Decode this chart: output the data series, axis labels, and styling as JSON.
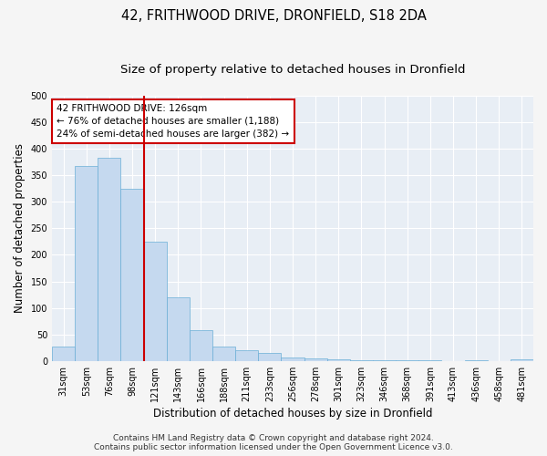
{
  "title": "42, FRITHWOOD DRIVE, DRONFIELD, S18 2DA",
  "subtitle": "Size of property relative to detached houses in Dronfield",
  "xlabel": "Distribution of detached houses by size in Dronfield",
  "ylabel": "Number of detached properties",
  "bins": [
    "31sqm",
    "53sqm",
    "76sqm",
    "98sqm",
    "121sqm",
    "143sqm",
    "166sqm",
    "188sqm",
    "211sqm",
    "233sqm",
    "256sqm",
    "278sqm",
    "301sqm",
    "323sqm",
    "346sqm",
    "368sqm",
    "391sqm",
    "413sqm",
    "436sqm",
    "458sqm",
    "481sqm"
  ],
  "values": [
    27,
    367,
    383,
    325,
    225,
    120,
    59,
    27,
    20,
    16,
    6,
    5,
    3,
    2,
    1,
    1,
    1,
    0,
    1,
    0,
    3
  ],
  "bar_color": "#c5d9ef",
  "bar_edge_color": "#6aaed6",
  "vline_color": "#cc0000",
  "annotation_text": "42 FRITHWOOD DRIVE: 126sqm\n← 76% of detached houses are smaller (1,188)\n24% of semi-detached houses are larger (382) →",
  "annotation_box_color": "#ffffff",
  "annotation_box_edge": "#cc0000",
  "ylim": [
    0,
    500
  ],
  "yticks": [
    0,
    50,
    100,
    150,
    200,
    250,
    300,
    350,
    400,
    450,
    500
  ],
  "footer1": "Contains HM Land Registry data © Crown copyright and database right 2024.",
  "footer2": "Contains public sector information licensed under the Open Government Licence v3.0.",
  "background_color": "#e8eef5",
  "grid_color": "#ffffff",
  "fig_background": "#f5f5f5",
  "title_fontsize": 10.5,
  "subtitle_fontsize": 9.5,
  "axis_label_fontsize": 8.5,
  "tick_fontsize": 7,
  "annotation_fontsize": 7.5,
  "footer_fontsize": 6.5,
  "vline_bin_index": 4
}
